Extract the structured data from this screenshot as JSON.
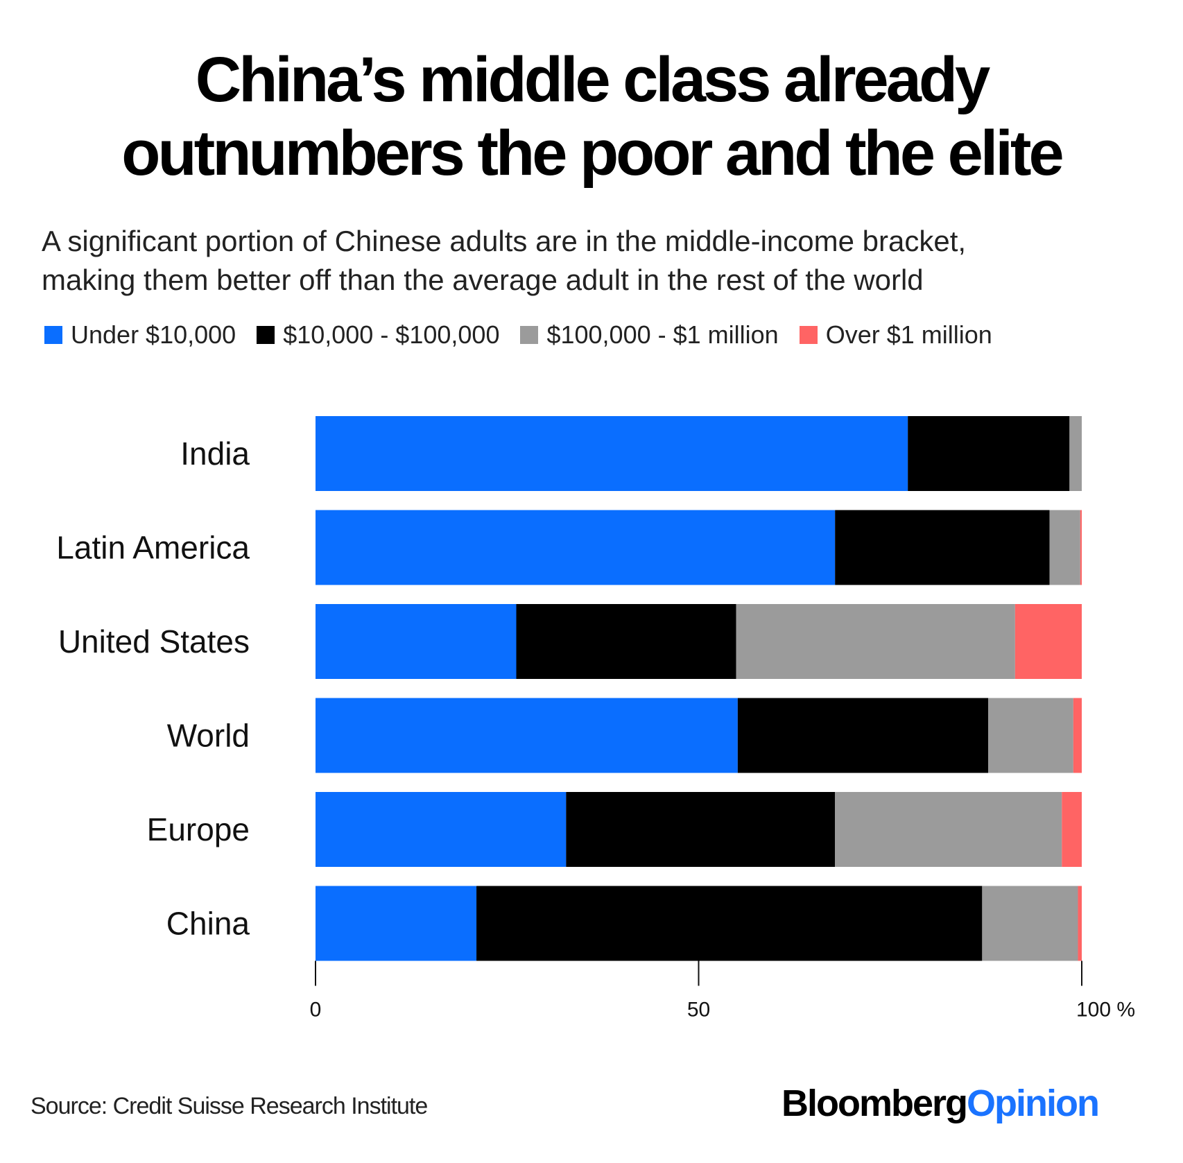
{
  "header": {
    "title_line1": "China’s middle class already",
    "title_line2": "outnumbers the poor and the elite",
    "subtitle_line1": "A significant portion of Chinese adults are in the middle-income bracket,",
    "subtitle_line2": "making them better off than the average adult in the rest of the world"
  },
  "legend": {
    "items": [
      {
        "label": "Under $10,000",
        "color": "#0a6eff"
      },
      {
        "label": "$10,000 - $100,000",
        "color": "#000000"
      },
      {
        "label": "$100,000 - $1 million",
        "color": "#9b9b9b"
      },
      {
        "label": "Over $1 million",
        "color": "#ff6464"
      }
    ]
  },
  "chart_data": {
    "type": "bar",
    "orientation": "horizontal",
    "stacked": true,
    "categories": [
      "India",
      "Latin America",
      "United States",
      "World",
      "Europe",
      "China"
    ],
    "series": [
      {
        "name": "Under $10,000",
        "color": "#0a6eff",
        "values": [
          77.3,
          67.8,
          26.2,
          55.1,
          32.7,
          21.0
        ]
      },
      {
        "name": "$10,000 - $100,000",
        "color": "#000000",
        "values": [
          21.1,
          28.0,
          28.7,
          32.7,
          35.1,
          66.0
        ]
      },
      {
        "name": "$100,000 - $1 million",
        "color": "#9b9b9b",
        "values": [
          1.6,
          4.0,
          36.4,
          11.1,
          29.6,
          12.5
        ]
      },
      {
        "name": "Over $1 million",
        "color": "#ff6464",
        "values": [
          0.0,
          0.2,
          8.7,
          1.1,
          2.6,
          0.5
        ]
      }
    ],
    "xlim": [
      0,
      100
    ],
    "x_ticks": [
      {
        "value": 0,
        "label": "0"
      },
      {
        "value": 50,
        "label": "50"
      },
      {
        "value": 100,
        "label": "100 %"
      }
    ],
    "grid": false,
    "legend_position": "top-left"
  },
  "footer": {
    "source": "Source: Credit Suisse Research Institute",
    "brand_part1": "Bloomberg",
    "brand_part2": "Opinion"
  }
}
